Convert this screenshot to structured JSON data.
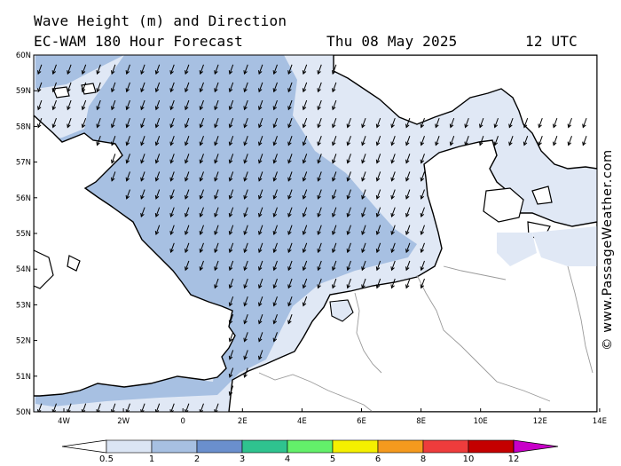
{
  "header": {
    "title": "Wave Height (m) and Direction",
    "model": "EC-WAM 180 Hour Forecast",
    "date": "Thu 08 May 2025",
    "time": "12 UTC"
  },
  "credit": "© www.PassageWeather.com",
  "map": {
    "lat_labels": [
      "60N",
      "59N",
      "58N",
      "57N",
      "56N",
      "55N",
      "54N",
      "53N",
      "52N",
      "51N",
      "50N"
    ],
    "lon_labels": [
      "4W",
      "2W",
      "0",
      "2E",
      "4E",
      "6E",
      "8E",
      "10E",
      "12E",
      "14E"
    ],
    "arrow_direction": "toward south-southwest",
    "colors": {
      "sea_light": "#e0e8f5",
      "sea_mid": "#a7c0e2",
      "land": "#ffffff",
      "coast": "#000000",
      "border": "#9a9a9a"
    }
  },
  "scale": {
    "labels": [
      "0.5",
      "1",
      "2",
      "3",
      "4",
      "5",
      "6",
      "8",
      "10",
      "12"
    ],
    "colors": [
      "#ffffff",
      "#dbe5f4",
      "#a7c0e2",
      "#6a8fcd",
      "#2fc38f",
      "#63f06a",
      "#f5f000",
      "#f59a1e",
      "#ee3c3c",
      "#c40000",
      "#c800c8"
    ]
  }
}
